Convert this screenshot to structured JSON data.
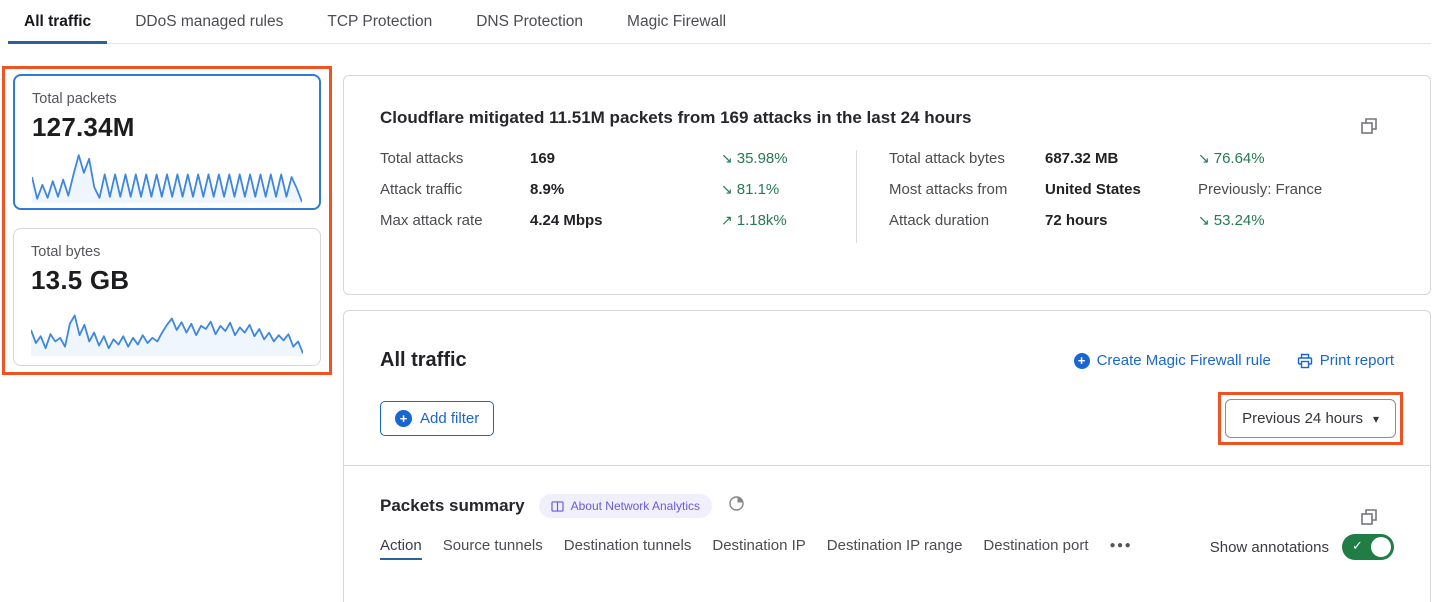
{
  "tabs": {
    "items": [
      {
        "label": "All traffic",
        "active": true
      },
      {
        "label": "DDoS managed rules",
        "active": false
      },
      {
        "label": "TCP Protection",
        "active": false
      },
      {
        "label": "DNS Protection",
        "active": false
      },
      {
        "label": "Magic Firewall",
        "active": false
      }
    ]
  },
  "metric_cards": [
    {
      "label": "Total packets",
      "value": "127.34M",
      "selected": true,
      "sparkline": [
        50,
        8,
        35,
        10,
        42,
        12,
        45,
        14,
        55,
        92,
        58,
        85,
        30,
        10,
        55,
        12,
        55,
        12,
        55,
        12,
        55,
        12,
        55,
        12,
        55,
        12,
        55,
        12,
        55,
        12,
        55,
        12,
        55,
        12,
        55,
        12,
        55,
        12,
        55,
        12,
        55,
        12,
        55,
        12,
        55,
        12,
        55,
        12,
        55,
        12,
        50,
        28,
        2
      ]
    },
    {
      "label": "Total bytes",
      "value": "13.5 GB",
      "selected": false,
      "sparkline": [
        50,
        25,
        38,
        15,
        42,
        28,
        35,
        18,
        62,
        78,
        40,
        60,
        28,
        45,
        20,
        38,
        15,
        32,
        22,
        38,
        18,
        35,
        22,
        40,
        25,
        35,
        28,
        45,
        60,
        72,
        50,
        65,
        45,
        62,
        40,
        58,
        52,
        66,
        42,
        58,
        48,
        64,
        40,
        55,
        45,
        60,
        38,
        52,
        32,
        45,
        28,
        40,
        30,
        42,
        18,
        28,
        5
      ]
    }
  ],
  "summary": {
    "title": "Cloudflare mitigated 11.51M packets from 169 attacks in the last 24 hours",
    "stats_left": [
      {
        "label": "Total attacks",
        "value": "169",
        "delta_icon": "↘",
        "delta": "35.98%"
      },
      {
        "label": "Attack traffic",
        "value": "8.9%",
        "delta_icon": "↘",
        "delta": "81.1%"
      },
      {
        "label": "Max attack rate",
        "value": "4.24 Mbps",
        "delta_icon": "↗",
        "delta": "1.18k%"
      }
    ],
    "stats_right": [
      {
        "label": "Total attack bytes",
        "value": "687.32 MB",
        "delta_icon": "↘",
        "delta": "76.64%"
      },
      {
        "label": "Most attacks from",
        "value": "United States",
        "delta_icon": "",
        "delta": "Previously: France"
      },
      {
        "label": "Attack duration",
        "value": "72 hours",
        "delta_icon": "↘",
        "delta": "53.24%"
      }
    ]
  },
  "all_traffic": {
    "title": "All traffic",
    "create_rule_label": "Create Magic Firewall rule",
    "print_report_label": "Print report",
    "add_filter_label": "Add filter",
    "time_range_label": "Previous 24 hours",
    "caret_icon": "▾"
  },
  "packets_summary": {
    "title": "Packets summary",
    "badge_label": "About Network Analytics",
    "subtabs": [
      {
        "label": "Action",
        "active": true
      },
      {
        "label": "Source tunnels",
        "active": false
      },
      {
        "label": "Destination tunnels",
        "active": false
      },
      {
        "label": "Destination IP",
        "active": false
      },
      {
        "label": "Destination IP range",
        "active": false
      },
      {
        "label": "Destination port",
        "active": false
      }
    ],
    "more_icon": "●●●",
    "show_annotations_label": "Show annotations",
    "annotations_on": true,
    "check_icon": "✓"
  },
  "icons": {
    "plus": "+"
  },
  "colors": {
    "accent_blue": "#1866d2",
    "selected_card_border": "#2e7cd6",
    "tab_underline_blue": "#2d619e",
    "trend_green": "#257a52",
    "annotation_orange": "#f05323",
    "badge_purple": "#655cd9",
    "badge_bg": "#f1effc",
    "toggle_green": "#1f7d45",
    "sparkline_blue": "#3f86e0"
  }
}
